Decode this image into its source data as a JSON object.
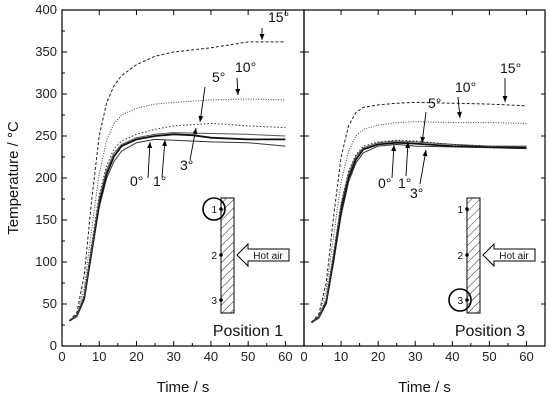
{
  "chart_data": [
    {
      "type": "line",
      "panel": "Position 1",
      "ylabel": "Temperature / °C",
      "xlabel": "Time / s",
      "xlim": [
        0,
        65
      ],
      "ylim": [
        0,
        400
      ],
      "xticks": [
        0,
        10,
        20,
        30,
        40,
        50,
        60
      ],
      "yticks": [
        0,
        50,
        100,
        150,
        200,
        250,
        300,
        350,
        400
      ],
      "series": [
        {
          "name": "0°",
          "points": [
            [
              2,
              30
            ],
            [
              4,
              35
            ],
            [
              6,
              55
            ],
            [
              8,
              110
            ],
            [
              10,
              165
            ],
            [
              12,
              200
            ],
            [
              14,
              220
            ],
            [
              16,
              232
            ],
            [
              20,
              242
            ],
            [
              25,
              246
            ],
            [
              30,
              245
            ],
            [
              40,
              243
            ],
            [
              50,
              242
            ],
            [
              60,
              238
            ]
          ]
        },
        {
          "name": "1°",
          "points": [
            [
              2,
              30
            ],
            [
              4,
              36
            ],
            [
              6,
              58
            ],
            [
              8,
              115
            ],
            [
              10,
              170
            ],
            [
              12,
              205
            ],
            [
              14,
              226
            ],
            [
              16,
              238
            ],
            [
              20,
              246
            ],
            [
              25,
              250
            ],
            [
              30,
              252
            ],
            [
              35,
              251
            ],
            [
              40,
              248
            ],
            [
              50,
              246
            ],
            [
              60,
              246
            ]
          ]
        },
        {
          "name": "3°",
          "points": [
            [
              2,
              30
            ],
            [
              4,
              36
            ],
            [
              6,
              60
            ],
            [
              8,
              118
            ],
            [
              10,
              175
            ],
            [
              12,
              210
            ],
            [
              14,
              230
            ],
            [
              16,
              240
            ],
            [
              20,
              248
            ],
            [
              25,
              252
            ],
            [
              30,
              254
            ],
            [
              40,
              253
            ],
            [
              50,
              252
            ],
            [
              60,
              250
            ]
          ]
        },
        {
          "name": "5°",
          "points": [
            [
              2,
              30
            ],
            [
              4,
              36
            ],
            [
              6,
              62
            ],
            [
              8,
              122
            ],
            [
              10,
              180
            ],
            [
              12,
              215
            ],
            [
              14,
              235
            ],
            [
              16,
              244
            ],
            [
              20,
              252
            ],
            [
              25,
              258
            ],
            [
              30,
              262
            ],
            [
              40,
              265
            ],
            [
              50,
              262
            ],
            [
              60,
              260
            ]
          ]
        },
        {
          "name": "10°",
          "points": [
            [
              2,
              30
            ],
            [
              4,
              38
            ],
            [
              6,
              70
            ],
            [
              8,
              140
            ],
            [
              10,
              205
            ],
            [
              12,
              245
            ],
            [
              14,
              265
            ],
            [
              16,
              275
            ],
            [
              20,
              283
            ],
            [
              25,
              288
            ],
            [
              30,
              290
            ],
            [
              40,
              293
            ],
            [
              50,
              294
            ],
            [
              60,
              293
            ]
          ]
        },
        {
          "name": "15°",
          "points": [
            [
              2,
              30
            ],
            [
              4,
              40
            ],
            [
              6,
              85
            ],
            [
              8,
              175
            ],
            [
              10,
              250
            ],
            [
              12,
              290
            ],
            [
              14,
              310
            ],
            [
              16,
              322
            ],
            [
              20,
              335
            ],
            [
              25,
              345
            ],
            [
              30,
              350
            ],
            [
              40,
              355
            ],
            [
              50,
              362
            ],
            [
              60,
              362
            ]
          ]
        }
      ],
      "inset": {
        "markers": [
          "1",
          "2",
          "3"
        ],
        "circled": "1",
        "arrow_label": "Hot air"
      }
    },
    {
      "type": "line",
      "panel": "Position 3",
      "xlabel": "Time / s",
      "xlim": [
        0,
        65
      ],
      "ylim": [
        0,
        400
      ],
      "xticks": [
        0,
        10,
        20,
        30,
        40,
        50,
        60
      ],
      "series": [
        {
          "name": "0°",
          "points": [
            [
              2,
              28
            ],
            [
              4,
              33
            ],
            [
              6,
              50
            ],
            [
              8,
              100
            ],
            [
              10,
              155
            ],
            [
              12,
              195
            ],
            [
              14,
              218
            ],
            [
              16,
              230
            ],
            [
              20,
              238
            ],
            [
              25,
              240
            ],
            [
              30,
              238
            ],
            [
              40,
              237
            ],
            [
              50,
              236
            ],
            [
              60,
              235
            ]
          ]
        },
        {
          "name": "1°",
          "points": [
            [
              2,
              28
            ],
            [
              4,
              34
            ],
            [
              6,
              52
            ],
            [
              8,
              105
            ],
            [
              10,
              162
            ],
            [
              12,
              200
            ],
            [
              14,
              222
            ],
            [
              16,
              234
            ],
            [
              20,
              240
            ],
            [
              25,
              242
            ],
            [
              30,
              241
            ],
            [
              40,
              238
            ],
            [
              50,
              237
            ],
            [
              60,
              236
            ]
          ]
        },
        {
          "name": "3°",
          "points": [
            [
              2,
              28
            ],
            [
              4,
              34
            ],
            [
              6,
              55
            ],
            [
              8,
              110
            ],
            [
              10,
              168
            ],
            [
              12,
              205
            ],
            [
              14,
              226
            ],
            [
              16,
              236
            ],
            [
              20,
              242
            ],
            [
              25,
              244
            ],
            [
              30,
              243
            ],
            [
              40,
              240
            ],
            [
              50,
              238
            ],
            [
              60,
              238
            ]
          ]
        },
        {
          "name": "5°",
          "points": [
            [
              2,
              28
            ],
            [
              4,
              34
            ],
            [
              6,
              56
            ],
            [
              8,
              112
            ],
            [
              10,
              170
            ],
            [
              12,
              208
            ],
            [
              14,
              228
            ],
            [
              16,
              238
            ],
            [
              20,
              243
            ],
            [
              25,
              245
            ],
            [
              30,
              244
            ],
            [
              40,
              240
            ],
            [
              50,
              238
            ],
            [
              60,
              237
            ]
          ]
        },
        {
          "name": "10°",
          "points": [
            [
              2,
              28
            ],
            [
              4,
              36
            ],
            [
              6,
              65
            ],
            [
              8,
              132
            ],
            [
              10,
              195
            ],
            [
              12,
              232
            ],
            [
              14,
              250
            ],
            [
              16,
              258
            ],
            [
              20,
              263
            ],
            [
              25,
              266
            ],
            [
              30,
              267
            ],
            [
              40,
              266
            ],
            [
              50,
              266
            ],
            [
              60,
              265
            ]
          ]
        },
        {
          "name": "15°",
          "points": [
            [
              2,
              28
            ],
            [
              4,
              38
            ],
            [
              6,
              75
            ],
            [
              8,
              155
            ],
            [
              10,
              225
            ],
            [
              12,
              262
            ],
            [
              14,
              278
            ],
            [
              16,
              284
            ],
            [
              20,
              287
            ],
            [
              25,
              289
            ],
            [
              30,
              290
            ],
            [
              40,
              289
            ],
            [
              50,
              288
            ],
            [
              60,
              286
            ]
          ]
        }
      ],
      "inset": {
        "markers": [
          "1",
          "2",
          "3"
        ],
        "circled": "3",
        "arrow_label": "Hot air"
      }
    }
  ]
}
